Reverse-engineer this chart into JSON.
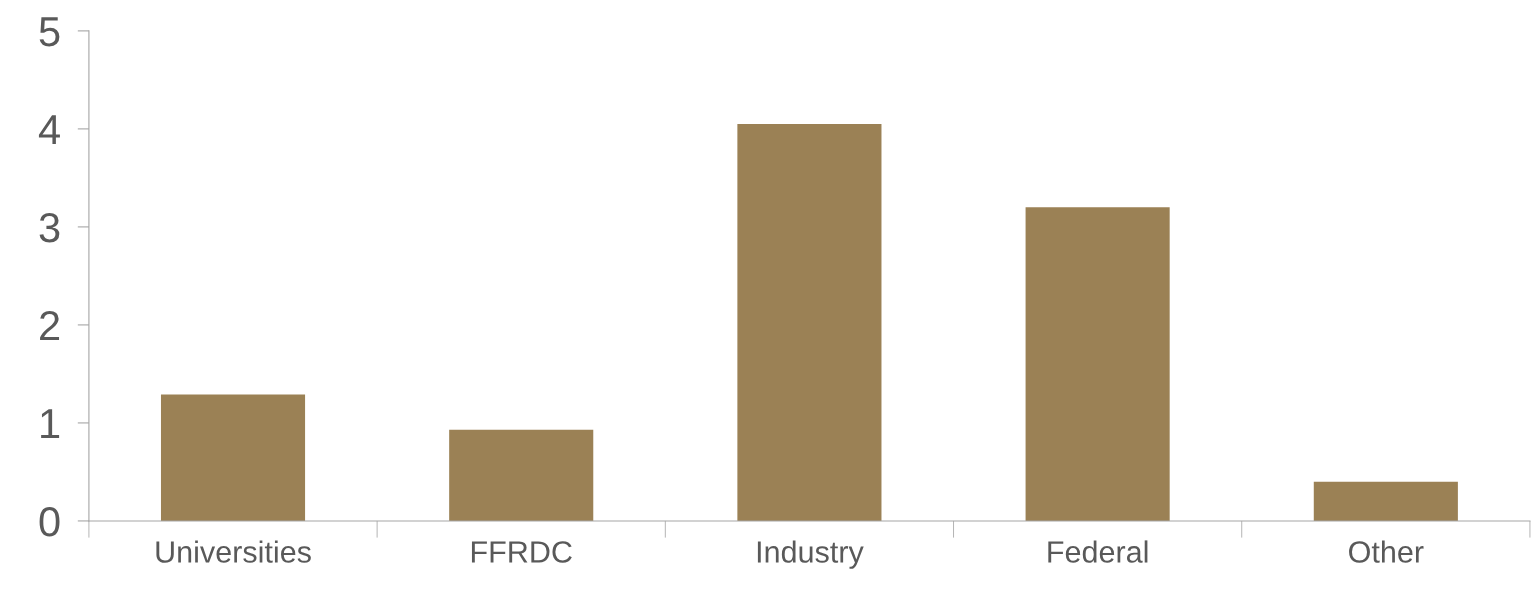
{
  "chart_data": {
    "type": "bar",
    "categories": [
      "Universities",
      "FFRDC",
      "Industry",
      "Federal",
      "Other"
    ],
    "values": [
      1.29,
      0.93,
      4.05,
      3.2,
      0.4
    ],
    "color": "#9b8155",
    "ylim": [
      0,
      5
    ],
    "yticks": [
      0,
      1,
      2,
      3,
      4,
      5
    ],
    "grid": false,
    "legend": false
  }
}
